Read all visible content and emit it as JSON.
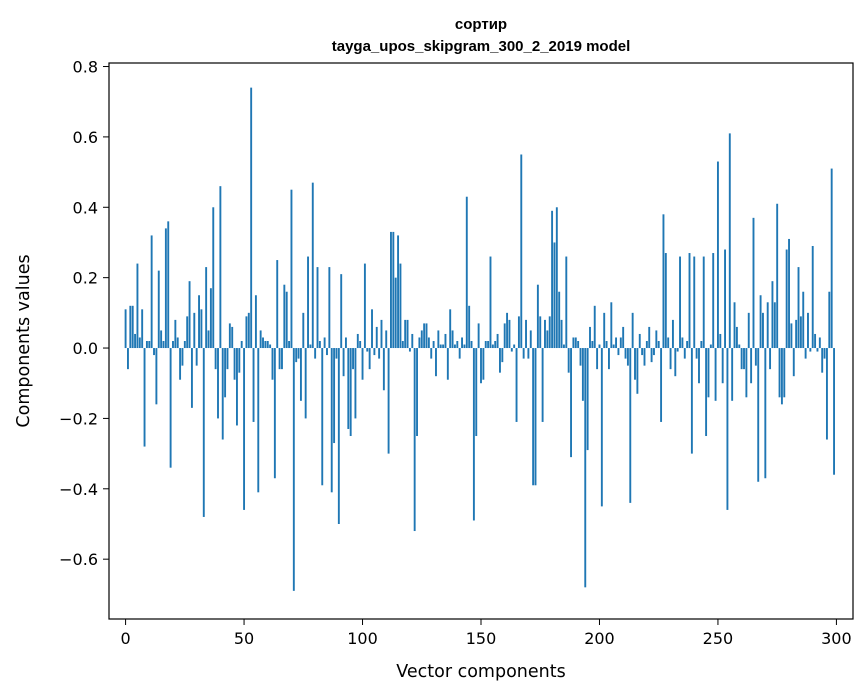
{
  "chart_data": {
    "type": "bar",
    "title": "сортир",
    "subtitle": "tayga_upos_skipgram_300_2_2019 model",
    "xlabel": "Vector components",
    "ylabel": "Components values",
    "xlim": [
      -7,
      307
    ],
    "ylim": [
      -0.77,
      0.81
    ],
    "xticks": [
      0,
      50,
      100,
      150,
      200,
      250,
      300
    ],
    "yticks": [
      -0.6,
      -0.4,
      -0.2,
      0.0,
      0.2,
      0.4,
      0.6,
      0.8
    ],
    "ytick_labels": [
      "−0.6",
      "−0.4",
      "−0.2",
      "0.0",
      "0.2",
      "0.4",
      "0.6",
      "0.8"
    ],
    "grid": false,
    "color": "#1f77b4",
    "x": [
      0,
      1,
      2,
      3,
      4,
      5,
      6,
      7,
      8,
      9,
      10,
      11,
      12,
      13,
      14,
      15,
      16,
      17,
      18,
      19,
      20,
      21,
      22,
      23,
      24,
      25,
      26,
      27,
      28,
      29,
      30,
      31,
      32,
      33,
      34,
      35,
      36,
      37,
      38,
      39,
      40,
      41,
      42,
      43,
      44,
      45,
      46,
      47,
      48,
      49,
      50,
      51,
      52,
      53,
      54,
      55,
      56,
      57,
      58,
      59,
      60,
      61,
      62,
      63,
      64,
      65,
      66,
      67,
      68,
      69,
      70,
      71,
      72,
      73,
      74,
      75,
      76,
      77,
      78,
      79,
      80,
      81,
      82,
      83,
      84,
      85,
      86,
      87,
      88,
      89,
      90,
      91,
      92,
      93,
      94,
      95,
      96,
      97,
      98,
      99,
      100,
      101,
      102,
      103,
      104,
      105,
      106,
      107,
      108,
      109,
      110,
      111,
      112,
      113,
      114,
      115,
      116,
      117,
      118,
      119,
      120,
      121,
      122,
      123,
      124,
      125,
      126,
      127,
      128,
      129,
      130,
      131,
      132,
      133,
      134,
      135,
      136,
      137,
      138,
      139,
      140,
      141,
      142,
      143,
      144,
      145,
      146,
      147,
      148,
      149,
      150,
      151,
      152,
      153,
      154,
      155,
      156,
      157,
      158,
      159,
      160,
      161,
      162,
      163,
      164,
      165,
      166,
      167,
      168,
      169,
      170,
      171,
      172,
      173,
      174,
      175,
      176,
      177,
      178,
      179,
      180,
      181,
      182,
      183,
      184,
      185,
      186,
      187,
      188,
      189,
      190,
      191,
      192,
      193,
      194,
      195,
      196,
      197,
      198,
      199,
      200,
      201,
      202,
      203,
      204,
      205,
      206,
      207,
      208,
      209,
      210,
      211,
      212,
      213,
      214,
      215,
      216,
      217,
      218,
      219,
      220,
      221,
      222,
      223,
      224,
      225,
      226,
      227,
      228,
      229,
      230,
      231,
      232,
      233,
      234,
      235,
      236,
      237,
      238,
      239,
      240,
      241,
      242,
      243,
      244,
      245,
      246,
      247,
      248,
      249,
      250,
      251,
      252,
      253,
      254,
      255,
      256,
      257,
      258,
      259,
      260,
      261,
      262,
      263,
      264,
      265,
      266,
      267,
      268,
      269,
      270,
      271,
      272,
      273,
      274,
      275,
      276,
      277,
      278,
      279,
      280,
      281,
      282,
      283,
      284,
      285,
      286,
      287,
      288,
      289,
      290,
      291,
      292,
      293,
      294,
      295,
      296,
      297,
      298,
      299
    ],
    "values": [
      0.11,
      -0.06,
      0.12,
      0.12,
      0.04,
      0.24,
      0.03,
      0.11,
      -0.28,
      0.02,
      0.02,
      0.32,
      -0.02,
      -0.16,
      0.22,
      0.05,
      0.02,
      0.34,
      0.36,
      -0.34,
      0.02,
      0.08,
      0.03,
      -0.09,
      -0.05,
      0.02,
      0.09,
      0.19,
      -0.17,
      0.1,
      -0.05,
      0.15,
      0.11,
      -0.48,
      0.23,
      0.05,
      0.17,
      0.4,
      -0.06,
      -0.2,
      0.46,
      -0.26,
      -0.14,
      -0.06,
      0.07,
      0.06,
      -0.09,
      -0.22,
      -0.07,
      0.02,
      -0.46,
      0.09,
      0.1,
      0.74,
      -0.21,
      0.15,
      -0.41,
      0.05,
      0.03,
      0.02,
      0.02,
      0.01,
      -0.09,
      -0.37,
      0.25,
      -0.06,
      -0.06,
      0.18,
      0.16,
      0.02,
      0.45,
      -0.69,
      -0.04,
      -0.03,
      -0.15,
      0.1,
      -0.2,
      0.26,
      0.01,
      0.47,
      -0.03,
      0.23,
      0.02,
      -0.39,
      0.03,
      -0.02,
      0.23,
      -0.41,
      -0.27,
      -0.03,
      -0.5,
      0.21,
      -0.08,
      0.03,
      -0.23,
      -0.25,
      -0.06,
      -0.2,
      0.04,
      0.02,
      -0.09,
      0.24,
      -0.01,
      -0.06,
      0.11,
      -0.02,
      0.06,
      -0.03,
      0.08,
      -0.12,
      0.05,
      -0.3,
      0.33,
      0.33,
      0.2,
      0.32,
      0.24,
      0.02,
      0.08,
      0.08,
      -0.01,
      0.04,
      -0.52,
      -0.25,
      0.03,
      0.05,
      0.07,
      0.07,
      0.03,
      -0.03,
      0.02,
      -0.08,
      0.05,
      0.01,
      0.01,
      0.04,
      -0.09,
      0.11,
      0.05,
      0.01,
      0.02,
      -0.03,
      0.03,
      0.01,
      0.43,
      0.12,
      0.02,
      -0.49,
      -0.25,
      0.07,
      -0.1,
      -0.09,
      0.02,
      0.02,
      0.26,
      0.01,
      0.02,
      0.04,
      -0.07,
      -0.04,
      0.07,
      0.1,
      0.08,
      -0.01,
      0.01,
      -0.21,
      0.09,
      0.55,
      -0.03,
      0.08,
      -0.03,
      0.05,
      -0.39,
      -0.39,
      0.18,
      0.09,
      -0.21,
      0.08,
      0.05,
      0.09,
      0.39,
      0.3,
      0.4,
      0.16,
      0.08,
      0.01,
      0.26,
      -0.07,
      -0.31,
      0.03,
      0.03,
      0.02,
      -0.05,
      -0.15,
      -0.68,
      -0.29,
      0.06,
      0.02,
      0.12,
      -0.06,
      0.01,
      -0.45,
      0.1,
      0.02,
      -0.06,
      0.13,
      0.01,
      0.03,
      -0.02,
      0.03,
      0.06,
      -0.03,
      -0.05,
      -0.44,
      0.1,
      -0.09,
      -0.13,
      0.04,
      -0.02,
      -0.05,
      0.02,
      0.06,
      -0.04,
      -0.02,
      0.05,
      0.02,
      -0.21,
      0.38,
      0.27,
      0.03,
      -0.06,
      0.08,
      -0.08,
      -0.01,
      0.26,
      0.03,
      -0.03,
      0.02,
      0.27,
      -0.3,
      0.26,
      -0.03,
      -0.1,
      0.02,
      0.26,
      -0.25,
      -0.14,
      0.01,
      0.27,
      -0.15,
      0.53,
      0.04,
      -0.1,
      0.28,
      -0.46,
      0.61,
      -0.15,
      0.13,
      0.06,
      0.01,
      -0.06,
      -0.06,
      -0.14,
      0.1,
      -0.1,
      0.37,
      -0.05,
      -0.38,
      0.15,
      0.1,
      -0.37,
      0.13,
      -0.06,
      0.19,
      0.13,
      0.41,
      -0.14,
      -0.16,
      -0.14,
      0.28,
      0.31,
      0.07,
      -0.08,
      0.08,
      0.23,
      0.09,
      0.16,
      -0.03,
      0.1,
      -0.01,
      0.29,
      0.04,
      -0.01,
      0.03,
      -0.07,
      -0.03,
      -0.26,
      0.16,
      0.51,
      -0.36
    ]
  }
}
